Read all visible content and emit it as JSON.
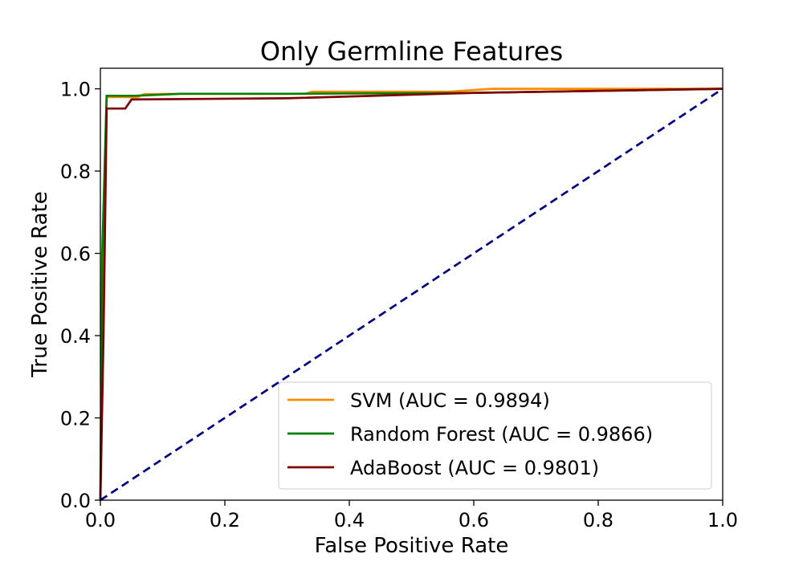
{
  "chart_data": {
    "type": "line",
    "title": "Only Germline Features",
    "xlabel": "False Positive Rate",
    "ylabel": "True Positive Rate",
    "xlim": [
      0.0,
      1.0
    ],
    "ylim": [
      0.0,
      1.05
    ],
    "xticks": [
      "0.0",
      "0.2",
      "0.4",
      "0.6",
      "0.8",
      "1.0"
    ],
    "yticks": [
      "0.0",
      "0.2",
      "0.4",
      "0.6",
      "0.8",
      "1.0"
    ],
    "grid": false,
    "legend_position": "lower-right",
    "series": [
      {
        "name": "SVM (AUC = 0.9894)",
        "color": "#ff8c00",
        "x": [
          0.0,
          0.003,
          0.01,
          0.06,
          0.07,
          0.13,
          0.33,
          0.34,
          0.56,
          0.62,
          0.63,
          0.9,
          1.0
        ],
        "y": [
          0.0,
          0.5,
          0.98,
          0.98,
          0.987,
          0.988,
          0.988,
          0.993,
          0.993,
          0.999,
          1.0,
          1.0,
          1.0
        ]
      },
      {
        "name": "Random Forest (AUC = 0.9866)",
        "color": "#008000",
        "x": [
          0.0,
          0.003,
          0.01,
          0.055,
          0.13,
          0.3,
          0.6,
          1.0
        ],
        "y": [
          0.0,
          0.6,
          0.983,
          0.983,
          0.988,
          0.988,
          0.99,
          1.0
        ]
      },
      {
        "name": "AdaBoost (AUC = 0.9801)",
        "color": "#800000",
        "x": [
          0.0,
          0.005,
          0.01,
          0.04,
          0.05,
          0.3,
          0.6,
          1.0
        ],
        "y": [
          0.0,
          0.4,
          0.952,
          0.952,
          0.974,
          0.977,
          0.99,
          1.0
        ]
      },
      {
        "name": "",
        "color": "#000080",
        "dashed": true,
        "x": [
          0.0,
          1.0
        ],
        "y": [
          0.0,
          1.0
        ]
      }
    ]
  }
}
